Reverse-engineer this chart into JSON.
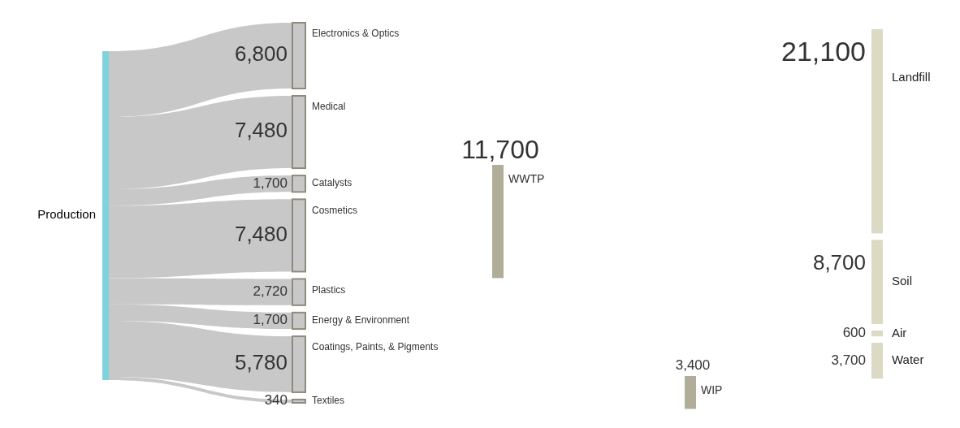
{
  "chart_data": {
    "type": "other",
    "categories": [
      "Production",
      "Electronics & Optics",
      "Medical",
      "Catalysts",
      "Cosmetics",
      "Plastics",
      "Energy & Environment",
      "Coatings, Paints, & Pigments",
      "Textiles",
      "WWTP",
      "WIP",
      "Landfill",
      "Soil",
      "Air",
      "Water"
    ],
    "values": [
      null,
      6800,
      7480,
      1700,
      7480,
      2720,
      1700,
      5780,
      340,
      11700,
      3400,
      21100,
      8700,
      600,
      3700
    ],
    "value_labels": [
      null,
      "6,800",
      "7,480",
      "1,700",
      "7,480",
      "2,720",
      "1,700",
      "5,780",
      "340",
      "11,700",
      "3,400",
      "21,100",
      "8,700",
      "600",
      "3,700"
    ],
    "colors": [
      "#7fd3dc",
      "#c8c8c8",
      "#c8c8c8",
      "#c8c8c8",
      "#c8c8c8",
      "#c8c8c8",
      "#c8c8c8",
      "#c8c8c8",
      "#c8c8c8",
      "#b0ad98",
      "#b0ad98",
      "#dcd9c4",
      "#dcd9c4",
      "#dcd9c4",
      "#dcd9c4"
    ]
  }
}
